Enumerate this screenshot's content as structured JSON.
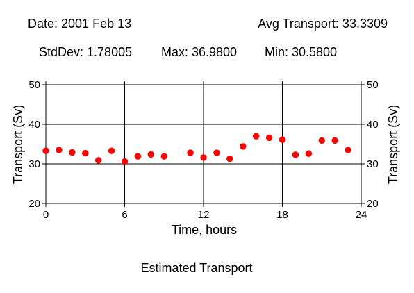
{
  "header": {
    "date": "Date: 2001 Feb 13",
    "avg": "Avg Transport: 33.3309",
    "stddev": "StdDev: 1.78005",
    "max": "Max: 36.9800",
    "min": "Min: 30.5800"
  },
  "colors": {
    "marker": "#ff0000",
    "grid": "#000000"
  },
  "chart_data": {
    "type": "scatter",
    "title": "Estimated Transport",
    "xlabel": "Time, hours",
    "ylabel": "Transport (Sv)",
    "ylabel_right": "Transport (Sv)",
    "xlim": [
      0,
      24
    ],
    "ylim": [
      20,
      50
    ],
    "xticks": [
      0,
      6,
      12,
      18,
      24
    ],
    "yticks": [
      20,
      30,
      40,
      50
    ],
    "grid": true,
    "series": [
      {
        "x": [
          0,
          1,
          2,
          3,
          4,
          5,
          6,
          7,
          8,
          9,
          11,
          12,
          13,
          14,
          15,
          16,
          17,
          18,
          19,
          20,
          21,
          22,
          23
        ],
        "y": [
          33.3,
          33.5,
          32.9,
          32.7,
          30.9,
          33.3,
          30.58,
          31.9,
          32.4,
          31.9,
          32.8,
          31.6,
          32.8,
          31.3,
          34.4,
          36.98,
          36.6,
          36.1,
          32.3,
          32.6,
          35.9,
          35.9,
          33.5
        ]
      }
    ]
  }
}
